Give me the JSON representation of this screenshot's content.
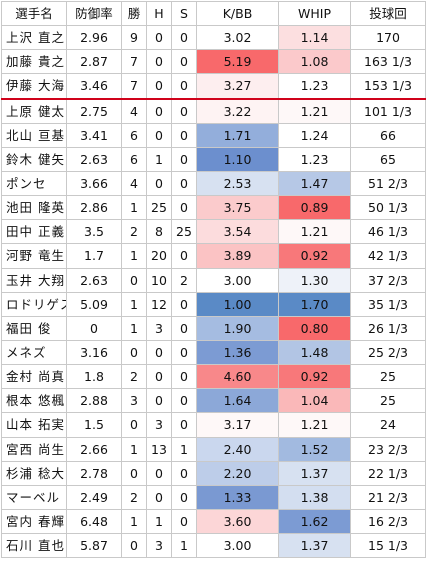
{
  "table": {
    "headers": [
      "選手名",
      "防御率",
      "勝",
      "H",
      "S",
      "K/BB",
      "WHIP",
      "投球回"
    ],
    "separator_after_row": 2,
    "separator_color": "#d0021b",
    "rows": [
      {
        "name": "上沢 直之",
        "era": "2.96",
        "w": "9",
        "h": "0",
        "s": "0",
        "kbb": "3.02",
        "kbb_bg": "#ffffff",
        "whip": "1.14",
        "whip_bg": "#fcdfe0",
        "ip": "170"
      },
      {
        "name": "加藤 貴之",
        "era": "2.87",
        "w": "7",
        "h": "0",
        "s": "0",
        "kbb": "5.19",
        "kbb_bg": "#f8696b",
        "whip": "1.08",
        "whip_bg": "#fbc9cb",
        "ip": "163 1/3"
      },
      {
        "name": "伊藤 大海",
        "era": "3.46",
        "w": "7",
        "h": "0",
        "s": "0",
        "kbb": "3.27",
        "kbb_bg": "#fdeeef",
        "whip": "1.23",
        "whip_bg": "#ffffff",
        "ip": "153 1/3"
      },
      {
        "name": "上原 健太",
        "era": "2.75",
        "w": "4",
        "h": "0",
        "s": "0",
        "kbb": "3.22",
        "kbb_bg": "#fef3f3",
        "whip": "1.21",
        "whip_bg": "#fef8f8",
        "ip": "101 1/3"
      },
      {
        "name": "北山 亘基",
        "era": "3.41",
        "w": "6",
        "h": "0",
        "s": "0",
        "kbb": "1.71",
        "kbb_bg": "#93aedb",
        "whip": "1.24",
        "whip_bg": "#ffffff",
        "ip": "66"
      },
      {
        "name": "鈴木 健矢",
        "era": "2.63",
        "w": "6",
        "h": "1",
        "s": "0",
        "kbb": "1.10",
        "kbb_bg": "#6c8fce",
        "whip": "1.23",
        "whip_bg": "#ffffff",
        "ip": "65"
      },
      {
        "name": "ポンセ",
        "era": "3.66",
        "w": "4",
        "h": "0",
        "s": "0",
        "kbb": "2.53",
        "kbb_bg": "#d7e1f1",
        "whip": "1.47",
        "whip_bg": "#b6c8e6",
        "ip": "51 2/3"
      },
      {
        "name": "池田 隆英",
        "era": "2.86",
        "w": "1",
        "h": "25",
        "s": "0",
        "kbb": "3.75",
        "kbb_bg": "#fbcbcc",
        "whip": "0.89",
        "whip_bg": "#f8696b",
        "ip": "50 1/3"
      },
      {
        "name": "田中 正義",
        "era": "3.5",
        "w": "2",
        "h": "8",
        "s": "25",
        "kbb": "3.54",
        "kbb_bg": "#fcdcdd",
        "whip": "1.21",
        "whip_bg": "#fef8f8",
        "ip": "46 1/3"
      },
      {
        "name": "河野 竜生",
        "era": "1.7",
        "w": "1",
        "h": "20",
        "s": "0",
        "kbb": "3.89",
        "kbb_bg": "#fbc3c4",
        "whip": "0.92",
        "whip_bg": "#f8787a",
        "ip": "42 1/3"
      },
      {
        "name": "玉井 大翔",
        "era": "2.63",
        "w": "0",
        "h": "10",
        "s": "2",
        "kbb": "3.00",
        "kbb_bg": "#ffffff",
        "whip": "1.30",
        "whip_bg": "#eef2f9",
        "ip": "37 2/3"
      },
      {
        "name": "ロドリゲス",
        "era": "5.09",
        "w": "1",
        "h": "12",
        "s": "0",
        "kbb": "1.00",
        "kbb_bg": "#5a8ac6",
        "whip": "1.70",
        "whip_bg": "#5a8ac6",
        "ip": "35 1/3"
      },
      {
        "name": "福田 俊",
        "era": "0",
        "w": "1",
        "h": "3",
        "s": "0",
        "kbb": "1.90",
        "kbb_bg": "#a5bce1",
        "whip": "0.80",
        "whip_bg": "#f8696b",
        "ip": "26 1/3"
      },
      {
        "name": "メネズ",
        "era": "3.16",
        "w": "0",
        "h": "0",
        "s": "0",
        "kbb": "1.36",
        "kbb_bg": "#7c9bd3",
        "whip": "1.48",
        "whip_bg": "#b2c5e4",
        "ip": "25 2/3"
      },
      {
        "name": "金村 尚真",
        "era": "1.8",
        "w": "2",
        "h": "0",
        "s": "0",
        "kbb": "4.60",
        "kbb_bg": "#f8888a",
        "whip": "0.92",
        "whip_bg": "#f8787a",
        "ip": "25"
      },
      {
        "name": "根本 悠楓",
        "era": "2.88",
        "w": "3",
        "h": "0",
        "s": "0",
        "kbb": "1.64",
        "kbb_bg": "#8ca8d8",
        "whip": "1.04",
        "whip_bg": "#fab8b9",
        "ip": "25"
      },
      {
        "name": "山本 拓実",
        "era": "1.5",
        "w": "0",
        "h": "3",
        "s": "0",
        "kbb": "3.17",
        "kbb_bg": "#fef8f8",
        "whip": "1.21",
        "whip_bg": "#fef8f8",
        "ip": "24"
      },
      {
        "name": "宮西 尚生",
        "era": "2.66",
        "w": "1",
        "h": "13",
        "s": "1",
        "kbb": "2.40",
        "kbb_bg": "#cad7ee",
        "whip": "1.52",
        "whip_bg": "#a2bae0",
        "ip": "23 2/3"
      },
      {
        "name": "杉浦 稔大",
        "era": "2.78",
        "w": "0",
        "h": "0",
        "s": "0",
        "kbb": "2.20",
        "kbb_bg": "#bdcde9",
        "whip": "1.37",
        "whip_bg": "#d7e1f1",
        "ip": "22 1/3"
      },
      {
        "name": "マーベル",
        "era": "2.49",
        "w": "2",
        "h": "0",
        "s": "0",
        "kbb": "1.33",
        "kbb_bg": "#7a99d2",
        "whip": "1.38",
        "whip_bg": "#d3def0",
        "ip": "21 2/3"
      },
      {
        "name": "宮内 春輝",
        "era": "6.48",
        "w": "1",
        "h": "1",
        "s": "0",
        "kbb": "3.60",
        "kbb_bg": "#fcd6d7",
        "whip": "1.62",
        "whip_bg": "#7c9bd3",
        "ip": "16 2/3"
      },
      {
        "name": "石川 直也",
        "era": "5.87",
        "w": "0",
        "h": "3",
        "s": "1",
        "kbb": "3.00",
        "kbb_bg": "#ffffff",
        "whip": "1.37",
        "whip_bg": "#d7e1f1",
        "ip": "15 1/3"
      }
    ]
  }
}
